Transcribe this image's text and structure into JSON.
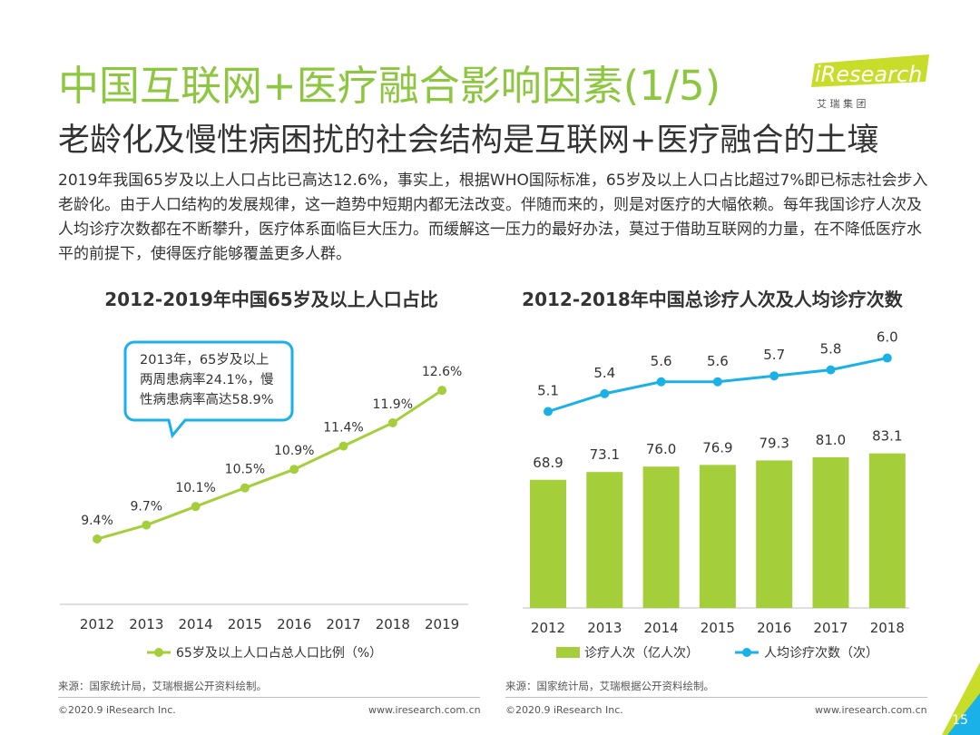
{
  "page": {
    "title": "中国互联网+医疗融合影响因素(1/5)",
    "subtitle": "老龄化及慢性病困扰的社会结构是互联网+医疗融合的土壤",
    "body_text": "2019年我国65岁及以上人口占比已高达12.6%，事实上，根据WHO国际标准，65岁及以上人口占比超过7%即已标志社会步入老龄化。由于人口结构的发展规律，这一趋势中短期内都无法改变。伴随而来的，则是对医疗的大幅依赖。每年我国诊疗人次及人均诊疗次数都在不断攀升，医疗体系面临巨大压力。而缓解这一压力的最好办法，莫过于借助互联网的力量，在不降低医疗水平的前提下，使得医疗能够覆盖更多人群。",
    "page_number": "15",
    "logo": {
      "text": "iResearch",
      "sub": "艾 瑞 集 团"
    },
    "colors": {
      "green": "#8dc63f",
      "bar_green": "#a5cf3a",
      "blue": "#1ab0e8",
      "text": "#333333"
    }
  },
  "left": {
    "title": "2012-2019年中国65岁及以上人口占比",
    "callout": [
      "2013年，65岁及以上",
      "两周患病率24.1%，慢",
      "性病患病率高达58.9%"
    ],
    "source": "来源：国家统计局，艾瑞根据公开资料绘制。",
    "footer_left": "©2020.9 iResearch Inc.",
    "footer_right": "www.iresearch.com.cn"
  },
  "right": {
    "title": "2012-2018年中国总诊疗人次及人均诊疗次数",
    "source": "来源：国家统计局，艾瑞根据公开资料绘制。",
    "footer_left": "©2020.9 iResearch Inc.",
    "footer_right": "www.iresearch.com.cn"
  },
  "chart_data": [
    {
      "type": "line",
      "title": "2012-2019年中国65岁及以上人口占比",
      "categories": [
        "2012",
        "2013",
        "2014",
        "2015",
        "2016",
        "2017",
        "2018",
        "2019"
      ],
      "series": [
        {
          "name": "65岁及以上人口占总人口比例（%）",
          "values": [
            9.4,
            9.7,
            10.1,
            10.5,
            10.9,
            11.4,
            11.9,
            12.6
          ],
          "labels": [
            "9.4%",
            "9.7%",
            "10.1%",
            "10.5%",
            "10.9%",
            "11.4%",
            "11.9%",
            "12.6%"
          ],
          "color": "#a5cf3a"
        }
      ],
      "legend": "bottom",
      "grid": false
    },
    {
      "type": "bar",
      "title": "2012-2018年中国总诊疗人次及人均诊疗次数",
      "categories": [
        "2012",
        "2013",
        "2014",
        "2015",
        "2016",
        "2017",
        "2018"
      ],
      "series": [
        {
          "name": "诊疗人次（亿人次）",
          "type": "bar",
          "values": [
            68.9,
            73.1,
            76.0,
            76.9,
            79.3,
            81.0,
            83.1
          ],
          "labels": [
            "68.9",
            "73.1",
            "76.0",
            "76.9",
            "79.3",
            "81.0",
            "83.1"
          ],
          "color": "#a5cf3a"
        },
        {
          "name": "人均诊疗次数（次）",
          "type": "line",
          "values": [
            5.1,
            5.4,
            5.6,
            5.6,
            5.7,
            5.8,
            6.0
          ],
          "labels": [
            "5.1",
            "5.4",
            "5.6",
            "5.6",
            "5.7",
            "5.8",
            "6.0"
          ],
          "color": "#1ab0e8"
        }
      ],
      "legend": "bottom",
      "grid": false
    }
  ]
}
